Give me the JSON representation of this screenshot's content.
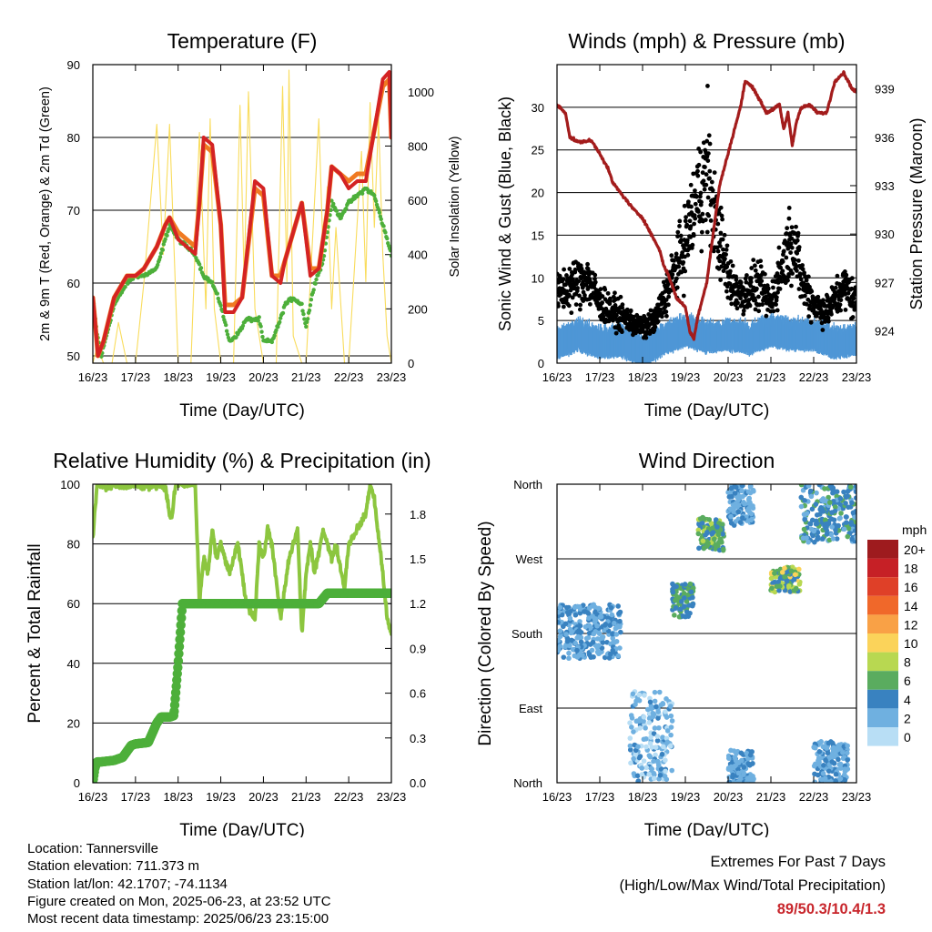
{
  "colors": {
    "temp_2m": "#d42323",
    "temp_9m": "#f07a22",
    "dewpoint": "#4daf3a",
    "solar": "#f9dc5c",
    "wind": "#4f97d6",
    "gust": "#000000",
    "pressure": "#a31c1c",
    "rh": "#8cc63f",
    "precip": "#4daf3a",
    "extremes": "#c8262c"
  },
  "chart_data": [
    {
      "type": "line",
      "title": "Temperature (F)",
      "xlabel": "Time (Day/UTC)",
      "ylabel": "2m & 9m T (Red, Orange) & 2m Td (Green)",
      "y2label": "Solar Insolation (Yellow)",
      "x_ticks": [
        "16/23",
        "17/23",
        "18/23",
        "19/23",
        "20/23",
        "21/23",
        "22/23",
        "23/23"
      ],
      "xlim_days": [
        0,
        7
      ],
      "ylim": [
        49,
        90
      ],
      "y_ticks": [
        50,
        60,
        70,
        80,
        90
      ],
      "y2lim": [
        0,
        1100
      ],
      "y2_ticks": [
        0,
        200,
        400,
        600,
        800,
        1000
      ],
      "grid": "horizontal",
      "series": [
        {
          "name": "2m T",
          "axis": "left",
          "x": [
            0,
            0.05,
            0.12,
            0.25,
            0.5,
            0.8,
            1.0,
            1.2,
            1.5,
            1.7,
            1.8,
            2.0,
            2.2,
            2.4,
            2.5,
            2.6,
            2.8,
            3.0,
            3.1,
            3.3,
            3.5,
            3.8,
            4.0,
            4.2,
            4.4,
            4.5,
            4.7,
            4.9,
            5.1,
            5.3,
            5.5,
            5.6,
            5.8,
            6.0,
            6.2,
            6.4,
            6.6,
            6.8,
            6.95,
            7.0
          ],
          "values": [
            58,
            55,
            50,
            52,
            58,
            61,
            61,
            62,
            65,
            68,
            69,
            66,
            65,
            64,
            71,
            80,
            79,
            68,
            56,
            56,
            58,
            74,
            73,
            61,
            60,
            63,
            67,
            71,
            61,
            62,
            70,
            76,
            75,
            73,
            74,
            74,
            81,
            88,
            89,
            80
          ]
        },
        {
          "name": "9m T",
          "axis": "left",
          "x": [
            0,
            0.05,
            0.12,
            0.25,
            0.5,
            0.8,
            1.0,
            1.2,
            1.5,
            1.7,
            1.8,
            2.0,
            2.2,
            2.4,
            2.5,
            2.6,
            2.8,
            3.0,
            3.1,
            3.3,
            3.5,
            3.8,
            4.0,
            4.2,
            4.4,
            4.5,
            4.7,
            4.9,
            5.1,
            5.3,
            5.5,
            5.6,
            5.8,
            6.0,
            6.2,
            6.4,
            6.6,
            6.8,
            6.95,
            7.0
          ],
          "values": [
            58,
            55,
            50,
            52,
            58,
            61,
            61,
            62,
            65,
            68,
            69,
            67,
            66,
            65,
            71,
            79,
            78,
            68,
            57,
            57,
            58,
            73,
            72,
            61,
            61,
            63,
            67,
            71,
            62,
            62,
            70,
            76,
            75,
            74,
            75,
            75,
            81,
            87,
            88,
            80
          ]
        },
        {
          "name": "2m Td",
          "axis": "left",
          "x": [
            0,
            0.1,
            0.2,
            0.5,
            0.8,
            1.0,
            1.2,
            1.5,
            1.6,
            1.8,
            2.0,
            2.2,
            2.4,
            2.6,
            2.8,
            3.0,
            3.2,
            3.4,
            3.6,
            3.8,
            3.9,
            4.0,
            4.2,
            4.4,
            4.5,
            4.7,
            4.9,
            5.0,
            5.2,
            5.4,
            5.6,
            5.8,
            6.0,
            6.2,
            6.4,
            6.6,
            6.8,
            7.0
          ],
          "values": [
            58,
            53,
            50,
            57,
            60,
            61,
            61,
            62,
            64,
            68,
            66,
            65,
            64,
            61,
            60,
            57,
            52,
            53,
            55,
            55,
            55,
            52,
            52,
            55,
            57,
            58,
            57,
            54,
            60,
            63,
            71,
            69,
            71,
            72,
            73,
            72,
            68,
            64
          ]
        },
        {
          "name": "Solar Insolation",
          "axis": "right",
          "x": [
            0,
            0.1,
            0.25,
            0.45,
            0.6,
            0.8,
            1.0,
            1.2,
            1.5,
            1.65,
            1.8,
            2.0,
            2.3,
            2.5,
            2.65,
            2.75,
            2.85,
            3.0,
            3.3,
            3.45,
            3.55,
            3.65,
            3.8,
            4.0,
            4.3,
            4.45,
            4.55,
            4.6,
            4.7,
            4.9,
            5.0,
            5.3,
            5.4,
            5.5,
            5.6,
            5.7,
            5.9,
            6.0,
            6.3,
            6.4,
            6.5,
            6.6,
            6.7,
            6.8,
            6.9,
            7.0
          ],
          "values": [
            0,
            60,
            0,
            0,
            150,
            0,
            0,
            300,
            880,
            400,
            880,
            0,
            0,
            850,
            200,
            900,
            200,
            0,
            0,
            950,
            300,
            1000,
            200,
            0,
            0,
            1020,
            300,
            1080,
            100,
            0,
            0,
            900,
            400,
            650,
            200,
            500,
            0,
            0,
            780,
            300,
            960,
            500,
            900,
            400,
            100,
            0
          ]
        }
      ]
    },
    {
      "type": "scatter",
      "title": "Winds (mph) & Pressure (mb)",
      "xlabel": "Time (Day/UTC)",
      "ylabel": "Sonic Wind & Gust (Blue, Black)",
      "y2label": "Station Pressure (Maroon)",
      "x_ticks": [
        "16/23",
        "17/23",
        "18/23",
        "19/23",
        "20/23",
        "21/23",
        "22/23",
        "23/23"
      ],
      "xlim_days": [
        0,
        7
      ],
      "ylim": [
        0,
        35
      ],
      "y_ticks": [
        0,
        5,
        10,
        15,
        20,
        25,
        30
      ],
      "y2lim": [
        922,
        940.5
      ],
      "y2_ticks": [
        924,
        927,
        930,
        933,
        936,
        939
      ],
      "grid": "horizontal",
      "series": [
        {
          "name": "Sonic Wind",
          "axis": "left",
          "x": [
            0,
            0.5,
            1.0,
            1.5,
            2.0,
            2.5,
            3.0,
            3.5,
            4.0,
            4.5,
            5.0,
            5.5,
            6.0,
            6.5,
            7.0
          ],
          "values": [
            2.5,
            3.5,
            2.5,
            2.8,
            1.5,
            3,
            4,
            3.2,
            3.5,
            3,
            4,
            3.5,
            3.5,
            2.5,
            3
          ]
        },
        {
          "name": "Gust",
          "axis": "left",
          "x": [
            0,
            0.3,
            0.7,
            1.0,
            1.3,
            1.7,
            2.0,
            2.3,
            2.7,
            3.0,
            3.3,
            3.5,
            3.7,
            4.0,
            4.3,
            4.7,
            5.0,
            5.3,
            5.5,
            5.7,
            6.0,
            6.3,
            6.7,
            7.0
          ],
          "values": [
            8,
            9,
            10,
            7,
            6,
            5,
            4,
            5,
            10,
            14,
            20,
            22,
            17,
            10,
            8,
            9,
            7,
            12,
            15,
            10,
            7,
            6,
            9,
            7
          ],
          "max": {
            "x": 3.52,
            "value": 32.5
          }
        },
        {
          "name": "Station Pressure",
          "axis": "right",
          "x": [
            0,
            0.2,
            0.3,
            0.5,
            0.8,
            1.0,
            1.2,
            1.3,
            1.5,
            1.8,
            2.0,
            2.2,
            2.4,
            2.5,
            2.6,
            2.8,
            3.0,
            3.1,
            3.2,
            3.3,
            3.4,
            3.5,
            3.6,
            3.8,
            4.0,
            4.2,
            4.3,
            4.4,
            4.6,
            4.9,
            5.2,
            5.3,
            5.4,
            5.5,
            5.6,
            5.7,
            5.9,
            6.1,
            6.3,
            6.5,
            6.7,
            6.8,
            6.9,
            7.0
          ],
          "values": [
            938,
            937.5,
            936,
            935.7,
            935.8,
            935,
            934,
            933.2,
            932.5,
            931.5,
            931,
            930,
            929,
            928,
            927.5,
            926,
            925.5,
            924,
            923.5,
            925,
            926,
            927,
            929,
            933,
            935,
            937,
            938,
            939.5,
            939,
            937.5,
            938,
            936.5,
            937.5,
            935.5,
            937,
            937.8,
            938,
            937.5,
            937.5,
            939.5,
            940,
            939.5,
            939,
            938.8
          ]
        }
      ]
    },
    {
      "type": "line",
      "title": "Relative Humidity (%) & Precipitation (in)",
      "xlabel": "Time (Day/UTC)",
      "ylabel": "Percent & Total Rainfall",
      "x_ticks": [
        "16/23",
        "17/23",
        "18/23",
        "19/23",
        "20/23",
        "21/23",
        "22/23",
        "23/23"
      ],
      "xlim_days": [
        0,
        7
      ],
      "ylim": [
        0,
        100
      ],
      "y_ticks": [
        0,
        20,
        40,
        60,
        80,
        100
      ],
      "y2lim": [
        0,
        2.0
      ],
      "y2_ticks": [
        "0.0",
        "0.3",
        "0.6",
        "0.9",
        "1.2",
        "1.5",
        "1.8"
      ],
      "grid": "horizontal",
      "series": [
        {
          "name": "Relative Humidity",
          "axis": "left",
          "x": [
            0,
            0.1,
            0.2,
            0.3,
            0.5,
            0.8,
            1.0,
            1.2,
            1.5,
            1.7,
            1.8,
            1.85,
            1.9,
            1.95,
            2.0,
            2.2,
            2.4,
            2.5,
            2.6,
            2.7,
            2.8,
            2.9,
            3.0,
            3.2,
            3.4,
            3.6,
            3.8,
            3.9,
            4.0,
            4.1,
            4.2,
            4.4,
            4.6,
            4.8,
            4.9,
            5.0,
            5.1,
            5.2,
            5.4,
            5.6,
            5.7,
            5.9,
            6.0,
            6.2,
            6.4,
            6.5,
            6.6,
            6.8,
            6.9,
            7.0
          ],
          "values": [
            82,
            100,
            100,
            99,
            100,
            99,
            100,
            99,
            100,
            99,
            90,
            88,
            95,
            100,
            100,
            100,
            100,
            60,
            75,
            70,
            85,
            75,
            80,
            70,
            80,
            60,
            55,
            80,
            75,
            85,
            80,
            55,
            75,
            85,
            50,
            70,
            80,
            70,
            85,
            75,
            80,
            65,
            80,
            85,
            90,
            100,
            95,
            70,
            55,
            50
          ]
        },
        {
          "name": "Total Precipitation",
          "axis": "right",
          "x": [
            0,
            0.05,
            0.1,
            0.2,
            0.5,
            0.7,
            0.9,
            1.0,
            1.3,
            1.5,
            1.6,
            1.8,
            1.9,
            2.0,
            2.1,
            2.5,
            3.0,
            3.5,
            4.0,
            4.5,
            5.0,
            5.3,
            5.5,
            6.0,
            6.5,
            7.0
          ],
          "values": [
            0,
            0.1,
            0.14,
            0.14,
            0.15,
            0.17,
            0.25,
            0.26,
            0.27,
            0.4,
            0.44,
            0.44,
            0.45,
            0.8,
            1.2,
            1.2,
            1.2,
            1.2,
            1.2,
            1.2,
            1.2,
            1.2,
            1.27,
            1.27,
            1.27,
            1.27
          ]
        }
      ]
    },
    {
      "type": "scatter",
      "title": "Wind Direction",
      "xlabel": "Time (Day/UTC)",
      "ylabel": "Direction (Colored By Speed)",
      "x_ticks": [
        "16/23",
        "17/23",
        "18/23",
        "19/23",
        "20/23",
        "21/23",
        "22/23",
        "23/23"
      ],
      "xlim_days": [
        0,
        7
      ],
      "y_ticks": [
        "North",
        "East",
        "South",
        "West",
        "North"
      ],
      "ylim_deg": [
        0,
        360
      ],
      "grid": "horizontal",
      "legend": {
        "title": "mph",
        "placement": "right",
        "labels": [
          "20+",
          "18",
          "16",
          "14",
          "12",
          "10",
          "8",
          "6",
          "4",
          "2",
          "0"
        ],
        "colors": [
          "#9e1b1e",
          "#c62026",
          "#df4028",
          "#f0682a",
          "#f9a146",
          "#fbd35a",
          "#b8d851",
          "#5aac5f",
          "#3982c0",
          "#6fb0e0",
          "#b8def5"
        ]
      },
      "clusters": [
        {
          "x": [
            0,
            1.5
          ],
          "direction_deg": [
            150,
            215
          ],
          "speed_mph": [
            1,
            5
          ]
        },
        {
          "x": [
            1.7,
            2.7
          ],
          "direction_deg": [
            0,
            110
          ],
          "speed_mph": [
            0,
            4
          ]
        },
        {
          "x": [
            2.7,
            3.2
          ],
          "direction_deg": [
            200,
            240
          ],
          "speed_mph": [
            3,
            7
          ]
        },
        {
          "x": [
            3.3,
            3.9
          ],
          "direction_deg": [
            280,
            320
          ],
          "speed_mph": [
            4,
            8
          ]
        },
        {
          "x": [
            4.0,
            4.6
          ],
          "direction_deg": [
            310,
            360
          ],
          "speed_mph": [
            1,
            4
          ]
        },
        {
          "x": [
            4.0,
            4.6
          ],
          "direction_deg": [
            0,
            40
          ],
          "speed_mph": [
            1,
            4
          ]
        },
        {
          "x": [
            5.0,
            5.7
          ],
          "direction_deg": [
            230,
            260
          ],
          "speed_mph": [
            3,
            10
          ]
        },
        {
          "x": [
            5.7,
            7.0
          ],
          "direction_deg": [
            290,
            360
          ],
          "speed_mph": [
            2,
            6
          ]
        },
        {
          "x": [
            6.0,
            6.8
          ],
          "direction_deg": [
            0,
            50
          ],
          "speed_mph": [
            1,
            4
          ]
        }
      ]
    }
  ],
  "info": {
    "location": "Location: Tannersville",
    "elevation": "Station elevation: 711.373 m",
    "latlon": "Station lat/lon: 42.1707; -74.1134",
    "created": "Figure created on Mon, 2025-06-23, at 23:52 UTC",
    "recent": "Most recent data timestamp: 2025/06/23 23:15:00"
  },
  "extremes": {
    "title": "Extremes For Past 7 Days",
    "subtitle": "(High/Low/Max Wind/Total Precipitation)",
    "values": "89/50.3/10.4/1.3"
  }
}
